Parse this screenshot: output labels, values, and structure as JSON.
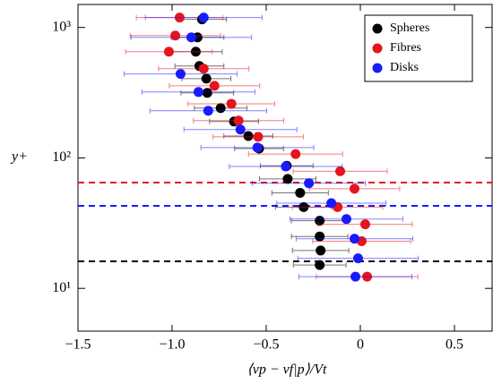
{
  "chart_data": {
    "type": "scatter",
    "xlabel": "⟨vp − vf|p⟩/Vt",
    "ylabel": "y+",
    "xlim": [
      -1.5,
      0.7
    ],
    "ylim": [
      4.7,
      1500
    ],
    "ylog": true,
    "xticks": [
      {
        "value": -1.5,
        "label": "−1.5"
      },
      {
        "value": -1.0,
        "label": "−1.0"
      },
      {
        "value": -0.5,
        "label": "−0.5"
      },
      0,
      0.5
    ],
    "yticks": [
      {
        "value": 10,
        "label": "10¹"
      },
      {
        "value": 100,
        "label": "10²"
      },
      {
        "value": 1000,
        "label": "10³"
      }
    ],
    "legend": "upper right",
    "series": [
      {
        "name": "Spheres",
        "color": "#000000",
        "x": [
          -0.841,
          -0.865,
          -0.874,
          -0.855,
          -0.818,
          -0.813,
          -0.742,
          -0.671,
          -0.595,
          -0.538,
          -0.391,
          -0.386,
          -0.32,
          -0.301,
          -0.216,
          -0.216,
          -0.211,
          -0.216
        ],
        "y": [
          1153,
          840,
          652,
          506,
          405,
          315,
          241,
          190,
          147,
          118,
          87,
          69,
          54,
          42,
          33,
          25,
          19.5,
          15.1
        ],
        "xerr": [
          0.13,
          0.14,
          0.14,
          0.13,
          0.13,
          0.14,
          0.14,
          0.13,
          0.13,
          0.13,
          0.14,
          0.15,
          0.15,
          0.15,
          0.15,
          0.15,
          0.15,
          0.14
        ]
      },
      {
        "name": "Fibres",
        "color": "#e8141c",
        "x": [
          -0.96,
          -0.983,
          -1.017,
          -0.832,
          -0.775,
          -0.685,
          -0.647,
          -0.543,
          -0.344,
          -0.107,
          -0.031,
          -0.121,
          0.026,
          0.007,
          0.036
        ],
        "y": [
          1190,
          867,
          652,
          483,
          357,
          260,
          193,
          145,
          107,
          79,
          58,
          42,
          31,
          23,
          12.3
        ],
        "xerr": [
          0.23,
          0.24,
          0.23,
          0.24,
          0.24,
          0.23,
          0.24,
          0.24,
          0.25,
          0.25,
          0.24,
          0.24,
          0.25,
          0.26,
          0.27
        ]
      },
      {
        "name": "Disks",
        "color": "#1a1aff",
        "x": [
          -0.832,
          -0.898,
          -0.955,
          -0.86,
          -0.808,
          -0.637,
          -0.547,
          -0.396,
          -0.273,
          -0.154,
          -0.074,
          -0.031,
          -0.012,
          -0.026
        ],
        "y": [
          1190,
          840,
          440,
          320,
          230,
          165,
          120,
          86,
          64,
          45,
          34,
          24,
          17,
          12.3
        ],
        "xerr": [
          0.31,
          0.32,
          0.3,
          0.3,
          0.31,
          0.3,
          0.3,
          0.3,
          0.3,
          0.29,
          0.3,
          0.31,
          0.32,
          0.3
        ]
      }
    ],
    "reference_lines": [
      {
        "value": 64.7,
        "color": "#e8141c"
      },
      {
        "value": 42.9,
        "color": "#1a1aff"
      },
      {
        "value": 16.1,
        "color": "#000000"
      }
    ]
  }
}
